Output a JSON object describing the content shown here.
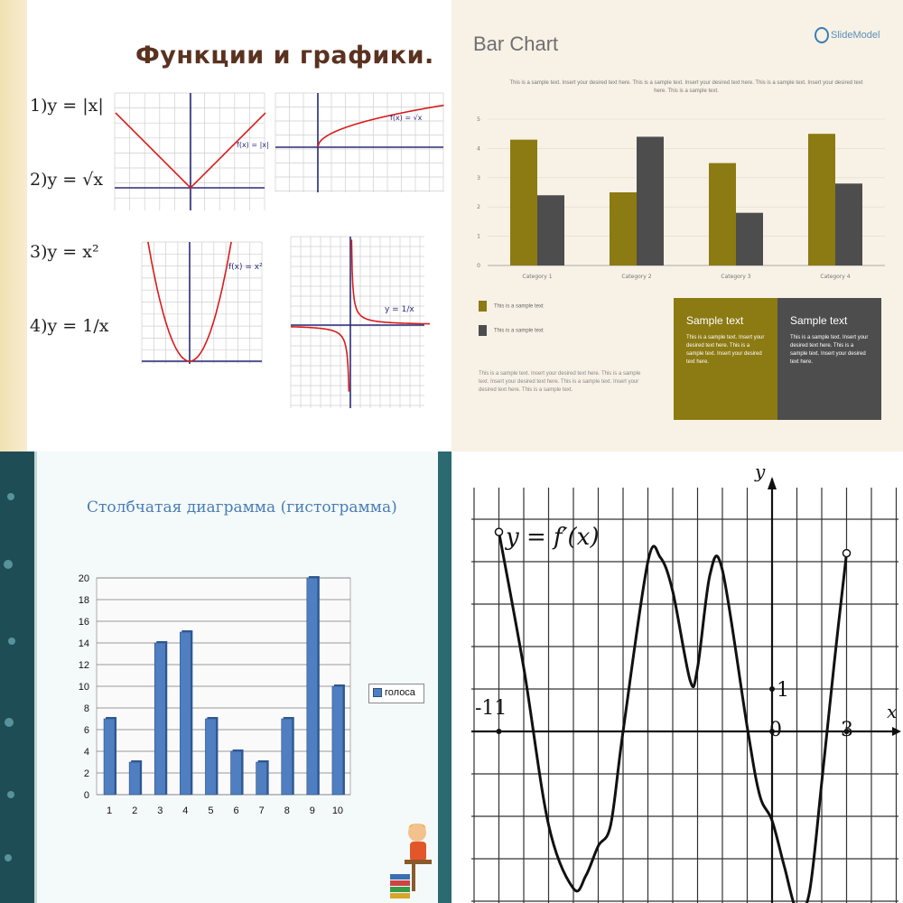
{
  "top_left": {
    "title": "Функции и графики.",
    "formulas": [
      {
        "num": "1)",
        "expr": "y = |x|"
      },
      {
        "num": "2)",
        "expr": "y = √x"
      },
      {
        "num": "3)",
        "expr": "y = x²"
      },
      {
        "num": "4)",
        "expr": "y = 1/x"
      }
    ],
    "graph_labels": [
      "f(x) = |x|",
      "f(x) = √x",
      "f(x) = x²",
      "y = 1/x"
    ],
    "colors": {
      "curve": "#d81c1c",
      "axis": "#2a2a7a",
      "grid": "#cfcfcf"
    }
  },
  "chart_data": [
    {
      "type": "bar",
      "title": "Bar Chart",
      "categories": [
        "Category 1",
        "Category 2",
        "Category 3",
        "Category 4"
      ],
      "series": [
        {
          "name": "This is a sample text",
          "values": [
            4.3,
            2.5,
            3.5,
            4.5
          ],
          "color": "#8c7a12"
        },
        {
          "name": "This is a sample text",
          "values": [
            2.4,
            4.4,
            1.8,
            2.8
          ],
          "color": "#4d4d4d"
        }
      ],
      "ylim": [
        0,
        5
      ],
      "yticks": [
        0,
        1,
        2,
        3,
        4,
        5
      ],
      "legend": "bottom-left"
    },
    {
      "type": "bar",
      "title": "Столбчатая диаграмма (гистограмма)",
      "categories": [
        "1",
        "2",
        "3",
        "4",
        "5",
        "6",
        "7",
        "8",
        "9",
        "10"
      ],
      "series": [
        {
          "name": "голоса",
          "values": [
            7,
            3,
            14,
            15,
            7,
            4,
            3,
            7,
            20,
            10
          ],
          "color": "#4f7fc0"
        }
      ],
      "ylim": [
        0,
        20
      ],
      "yticks": [
        0,
        2,
        4,
        6,
        8,
        10,
        12,
        14,
        16,
        18,
        20
      ],
      "legend": "right",
      "grid": true
    },
    {
      "type": "line",
      "title": "y = f′(x)",
      "xlabel": "x",
      "ylabel": "y",
      "xlim": [
        -11,
        3
      ],
      "x": [
        -11,
        -10,
        -9,
        -8,
        -7.5,
        -7,
        -6.5,
        -6,
        -5,
        -4.5,
        -4,
        -3.3,
        -3,
        -2.5,
        -2,
        -1,
        -0.5,
        0,
        0.5,
        1,
        1.5,
        2,
        2.5,
        3
      ],
      "y": [
        4.7,
        1.5,
        -2.2,
        -3.7,
        -3.4,
        -2.7,
        -2.2,
        0,
        4,
        4.1,
        3.3,
        1.2,
        1.5,
        3.7,
        3.8,
        0.1,
        -1.5,
        -2.1,
        -3.2,
        -4.2,
        -3.8,
        -1.2,
        1.6,
        4.2
      ],
      "annotations": [
        "-11",
        "0",
        "3",
        "1"
      ],
      "grid": true
    }
  ],
  "top_right": {
    "logo": "SlideModel",
    "subtitle": "This is a sample text. Insert your desired text here. This is a sample text. Insert your desired text here. This is a sample text. Insert your desired text here. This is a sample text.",
    "body": "This is a sample text. Insert your desired text here. This is a sample text. Insert your desired text here. This is a sample text. Insert your desired text here. This is a sample text.",
    "cards": [
      {
        "title": "Sample text",
        "text": "This is a sample text. Insert your desired text here. This is a sample text. Insert your desired text here.",
        "color": "#8c7a12"
      },
      {
        "title": "Sample text",
        "text": "This is a sample text. Insert your desired text here. This is a sample text. Insert your desired text here.",
        "color": "#4d4d4d"
      }
    ]
  }
}
